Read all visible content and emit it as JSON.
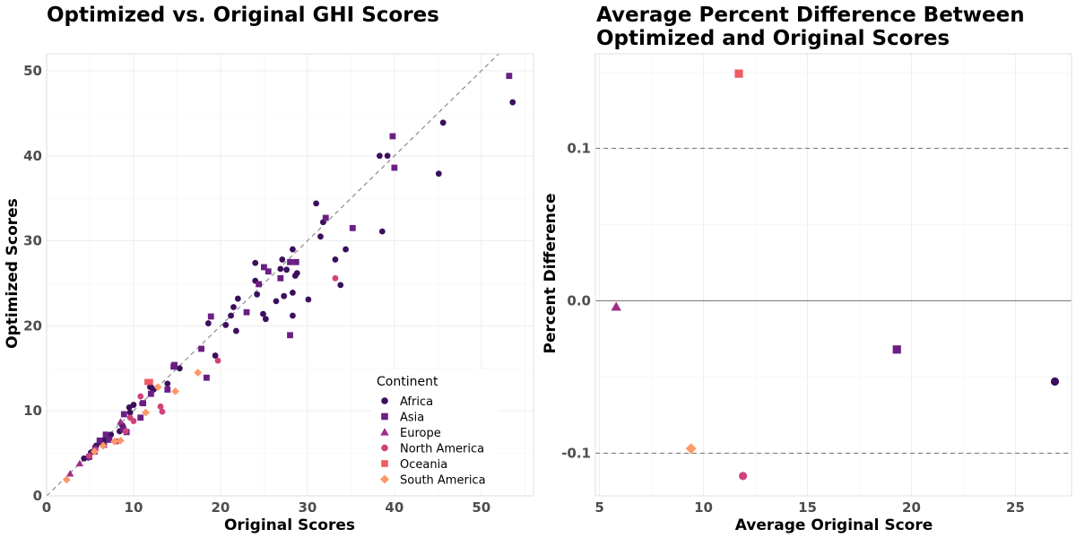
{
  "colors": {
    "Africa": "#3b0f5c",
    "Asia": "#6a1f84",
    "Europe": "#a12d87",
    "North America": "#d0427a",
    "Oceania": "#ef5b62",
    "South America": "#fd9868"
  },
  "shapes": {
    "Africa": "circle",
    "Asia": "square",
    "Europe": "triangle",
    "North America": "circle",
    "Oceania": "square",
    "South America": "diamond"
  },
  "chart_data": [
    {
      "type": "scatter",
      "title": "Optimized vs. Original GHI Scores",
      "xlabel": "Original Scores",
      "ylabel": "Optimized Scores",
      "xlim": [
        0,
        56
      ],
      "ylim": [
        0,
        52
      ],
      "xticks": [
        "0",
        "10",
        "20",
        "30",
        "40",
        "50"
      ],
      "xtick_values": [
        0,
        10,
        20,
        30,
        40,
        50
      ],
      "yticks": [
        "0",
        "10",
        "20",
        "30",
        "40",
        "50"
      ],
      "ytick_values": [
        0,
        10,
        20,
        30,
        40,
        50
      ],
      "reference_line": "y = x (dashed grey)",
      "grid": true,
      "legend": {
        "title": "Continent",
        "placement": "bottom-right",
        "entries": [
          "Africa",
          "Asia",
          "Europe",
          "North America",
          "Oceania",
          "South America"
        ]
      },
      "series": [
        {
          "name": "Africa",
          "points": [
            [
              53.6,
              46.3
            ],
            [
              45.6,
              43.9
            ],
            [
              45.1,
              37.9
            ],
            [
              38.3,
              40.0
            ],
            [
              39.2,
              40.0
            ],
            [
              38.6,
              31.1
            ],
            [
              31.0,
              34.4
            ],
            [
              31.8,
              32.2
            ],
            [
              31.5,
              30.5
            ],
            [
              34.4,
              29.0
            ],
            [
              33.2,
              27.8
            ],
            [
              33.8,
              24.8
            ],
            [
              30.1,
              23.1
            ],
            [
              28.3,
              29.0
            ],
            [
              28.8,
              26.2
            ],
            [
              28.6,
              25.9
            ],
            [
              26.9,
              26.7
            ],
            [
              27.1,
              27.8
            ],
            [
              27.6,
              26.6
            ],
            [
              26.4,
              22.9
            ],
            [
              27.3,
              23.5
            ],
            [
              28.3,
              23.9
            ],
            [
              28.3,
              21.2
            ],
            [
              24.0,
              27.4
            ],
            [
              24.0,
              25.3
            ],
            [
              24.2,
              23.7
            ],
            [
              24.9,
              21.4
            ],
            [
              25.2,
              20.8
            ],
            [
              22.0,
              23.2
            ],
            [
              21.5,
              22.2
            ],
            [
              21.2,
              21.2
            ],
            [
              20.6,
              20.1
            ],
            [
              21.8,
              19.4
            ],
            [
              18.6,
              20.3
            ],
            [
              19.4,
              16.5
            ],
            [
              15.3,
              15.0
            ],
            [
              13.9,
              13.2
            ],
            [
              12.3,
              12.5
            ],
            [
              12.1,
              12.7
            ],
            [
              11.9,
              12.8
            ],
            [
              11.0,
              10.9
            ],
            [
              10.0,
              10.7
            ],
            [
              9.5,
              10.4
            ],
            [
              9.6,
              9.8
            ],
            [
              9.0,
              7.7
            ],
            [
              8.7,
              8.3
            ],
            [
              8.4,
              7.6
            ],
            [
              7.4,
              7.2
            ],
            [
              7.1,
              6.7
            ],
            [
              6.7,
              6.6
            ],
            [
              6.2,
              6.3
            ],
            [
              6.5,
              6.3
            ],
            [
              5.7,
              5.9
            ],
            [
              5.1,
              5.1
            ],
            [
              4.8,
              4.5
            ],
            [
              4.3,
              4.4
            ]
          ]
        },
        {
          "name": "Asia",
          "points": [
            [
              53.2,
              49.4
            ],
            [
              39.8,
              42.3
            ],
            [
              40.0,
              38.6
            ],
            [
              35.2,
              31.5
            ],
            [
              32.1,
              32.7
            ],
            [
              28.7,
              27.5
            ],
            [
              28.0,
              27.5
            ],
            [
              25.0,
              26.9
            ],
            [
              25.5,
              26.4
            ],
            [
              26.9,
              25.6
            ],
            [
              24.4,
              24.9
            ],
            [
              23.0,
              21.6
            ],
            [
              28.0,
              18.9
            ],
            [
              18.9,
              21.1
            ],
            [
              17.8,
              17.3
            ],
            [
              18.4,
              13.9
            ],
            [
              14.7,
              15.4
            ],
            [
              14.6,
              15.2
            ],
            [
              13.9,
              12.5
            ],
            [
              12.0,
              12.0
            ],
            [
              11.1,
              10.9
            ],
            [
              10.8,
              9.2
            ],
            [
              9.2,
              7.5
            ],
            [
              8.8,
              7.9
            ],
            [
              8.9,
              9.6
            ],
            [
              7.2,
              6.6
            ],
            [
              6.6,
              6.0
            ],
            [
              6.1,
              6.5
            ],
            [
              5.6,
              5.6
            ],
            [
              5.5,
              5.2
            ],
            [
              4.9,
              4.6
            ],
            [
              6.8,
              7.2
            ]
          ]
        },
        {
          "name": "Europe",
          "points": [
            [
              8.5,
              8.7
            ],
            [
              3.8,
              3.8
            ],
            [
              2.7,
              2.6
            ]
          ]
        },
        {
          "name": "North America",
          "points": [
            [
              33.2,
              25.6
            ],
            [
              19.7,
              15.9
            ],
            [
              13.1,
              10.5
            ],
            [
              13.3,
              9.9
            ],
            [
              10.8,
              11.7
            ],
            [
              10.0,
              8.8
            ],
            [
              9.6,
              9.2
            ],
            [
              9.1,
              7.6
            ],
            [
              8.1,
              6.4
            ],
            [
              5.6,
              5.4
            ],
            [
              4.9,
              4.7
            ]
          ]
        },
        {
          "name": "Oceania",
          "points": [
            [
              11.9,
              13.4
            ],
            [
              11.6,
              13.4
            ]
          ]
        },
        {
          "name": "South America",
          "points": [
            [
              17.4,
              14.5
            ],
            [
              14.8,
              12.3
            ],
            [
              12.8,
              12.8
            ],
            [
              11.4,
              9.8
            ],
            [
              8.5,
              6.5
            ],
            [
              7.8,
              6.4
            ],
            [
              6.5,
              5.9
            ],
            [
              5.5,
              5.2
            ],
            [
              2.3,
              1.9
            ]
          ]
        }
      ]
    },
    {
      "type": "scatter",
      "title_line1": "Average Percent Difference Between",
      "title_line2": "Optimized and Original Scores",
      "xlabel": "Average Original Score",
      "ylabel": "Percent Difference",
      "xlim": [
        4.8,
        27.7
      ],
      "ylim": [
        -0.128,
        0.162
      ],
      "xticks": [
        "5",
        "10",
        "15",
        "20",
        "25"
      ],
      "xtick_values": [
        5,
        10,
        15,
        20,
        25
      ],
      "yticks": [
        "-0.1",
        "0.0",
        "0.1"
      ],
      "ytick_values": [
        -0.1,
        0.0,
        0.1
      ],
      "reference_lines": "solid at 0.0, dashed at -0.1 and 0.1",
      "grid": true,
      "points": [
        {
          "continent": "Europe",
          "x": 5.8,
          "y": -0.004
        },
        {
          "continent": "South America",
          "x": 9.4,
          "y": -0.097
        },
        {
          "continent": "Oceania",
          "x": 11.7,
          "y": 0.149
        },
        {
          "continent": "North America",
          "x": 11.9,
          "y": -0.115
        },
        {
          "continent": "Asia",
          "x": 19.3,
          "y": -0.032
        },
        {
          "continent": "Africa",
          "x": 26.9,
          "y": -0.053
        }
      ]
    }
  ]
}
